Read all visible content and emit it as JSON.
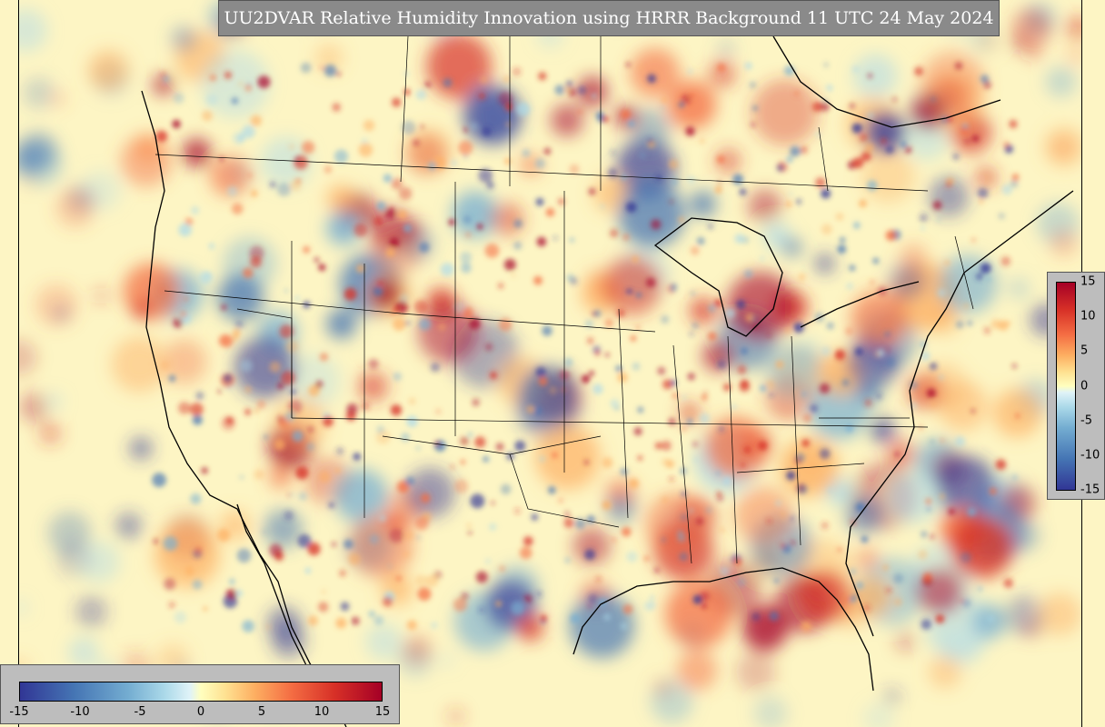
{
  "title": "UU2DVAR Relative Humidity Innovation using HRRR Background 11 UTC 24 May 2024",
  "colorbar_horizontal": {
    "ticks": [
      "-15",
      "-10",
      "-5",
      "0",
      "5",
      "10",
      "15"
    ],
    "range": [
      -15,
      15
    ]
  },
  "colorbar_vertical": {
    "ticks": [
      "15",
      "10",
      "5",
      "0",
      "-5",
      "-10",
      "-15"
    ],
    "range": [
      -15,
      15
    ]
  },
  "colors": {
    "ocean_background": "#fdf5c4",
    "strong_negative": "#313695",
    "negative": "#4575b4",
    "neutral": "#ffffbf",
    "positive": "#f46d43",
    "strong_positive": "#a50026",
    "panel_gray": "#8a8a8a"
  }
}
